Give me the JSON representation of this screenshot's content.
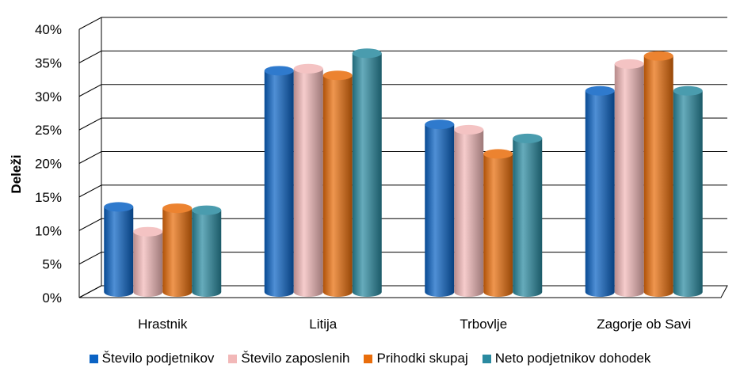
{
  "chart_data": {
    "type": "bar",
    "ylabel": "Deleži",
    "xlabel": "",
    "ylim": [
      0,
      40
    ],
    "yticks": [
      "0%",
      "5%",
      "10%",
      "15%",
      "20%",
      "25%",
      "30%",
      "35%",
      "40%"
    ],
    "categories": [
      "Hrastnik",
      "Litija",
      "Trbovlje",
      "Zagorje ob Savi"
    ],
    "series": [
      {
        "name": "Število podjetnikov",
        "color": "#0a63c4",
        "values": [
          12.7,
          33.0,
          25.0,
          30.0
        ]
      },
      {
        "name": "Število zaposlenih",
        "color": "#f2b8b8",
        "values": [
          9.0,
          33.3,
          24.2,
          34.0
        ]
      },
      {
        "name": "Prihodki skupaj",
        "color": "#e96d0b",
        "values": [
          12.5,
          32.3,
          20.6,
          35.2
        ]
      },
      {
        "name": "Neto podjetnikov dohodek",
        "color": "#2a8aa0",
        "values": [
          12.2,
          35.6,
          22.9,
          30.0
        ]
      }
    ],
    "grid": true,
    "legend_position": "bottom"
  }
}
